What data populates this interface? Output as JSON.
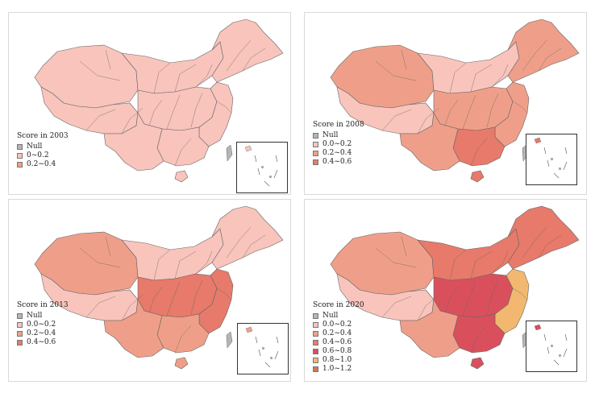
{
  "colors": {
    "null": "#b5b5b5",
    "c0": "#f8c4bc",
    "c1": "#ef9f89",
    "c2": "#e77a6a",
    "c3": "#d9505c",
    "c4": "#f2b870",
    "c5": "#d27850",
    "border": "#666666"
  },
  "panels": [
    {
      "id": "p1",
      "year_label": "Score in 2003",
      "legend": [
        {
          "label": "Null",
          "color": "#b5b5b5"
        },
        {
          "label": "0~0.2",
          "color": "#f8c4bc"
        },
        {
          "label": "0.2~0.4",
          "color": "#ef9f89"
        }
      ],
      "regions": {
        "west": "c0",
        "tibet": "c0",
        "north": "c0",
        "northeast": "c0",
        "central": "c0",
        "east": "c0",
        "south": "c0",
        "southwest": "c0",
        "hainan": "c0"
      }
    },
    {
      "id": "p2",
      "year_label": "Score in 2008",
      "legend": [
        {
          "label": "Null",
          "color": "#b5b5b5"
        },
        {
          "label": "0.0~0.2",
          "color": "#f8c4bc"
        },
        {
          "label": "0.2~0.4",
          "color": "#ef9f89"
        },
        {
          "label": "0.4~0.6",
          "color": "#e77a6a"
        }
      ],
      "regions": {
        "west": "c1",
        "tibet": "c0",
        "north": "c0",
        "northeast": "c1",
        "central": "c1",
        "east": "c1",
        "south": "c2",
        "southwest": "c1",
        "hainan": "c2"
      }
    },
    {
      "id": "p3",
      "year_label": "Score in 2013",
      "legend": [
        {
          "label": "Null",
          "color": "#b5b5b5"
        },
        {
          "label": "0.0~0.2",
          "color": "#f8c4bc"
        },
        {
          "label": "0.2~0.4",
          "color": "#ef9f89"
        },
        {
          "label": "0.4~0.6",
          "color": "#e77a6a"
        }
      ],
      "regions": {
        "west": "c1",
        "tibet": "c0",
        "north": "c0",
        "northeast": "c0",
        "central": "c2",
        "east": "c2",
        "south": "c1",
        "southwest": "c1",
        "hainan": "c1"
      }
    },
    {
      "id": "p4",
      "year_label": "Score in 2020",
      "legend": [
        {
          "label": "Null",
          "color": "#b5b5b5"
        },
        {
          "label": "0.0~0.2",
          "color": "#f8c4bc"
        },
        {
          "label": "0.2~0.4",
          "color": "#ef9f89"
        },
        {
          "label": "0.4~0.6",
          "color": "#e77a6a"
        },
        {
          "label": "0.6~0.8",
          "color": "#d9505c"
        },
        {
          "label": "0.8~1.0",
          "color": "#f2b870"
        },
        {
          "label": "1.0~1.2",
          "color": "#d27850"
        }
      ],
      "regions": {
        "west": "c1",
        "tibet": "c0",
        "north": "c2",
        "northeast": "c2",
        "central": "c3",
        "east": "c4",
        "south": "c3",
        "southwest": "c1",
        "hainan": "c3"
      }
    }
  ]
}
